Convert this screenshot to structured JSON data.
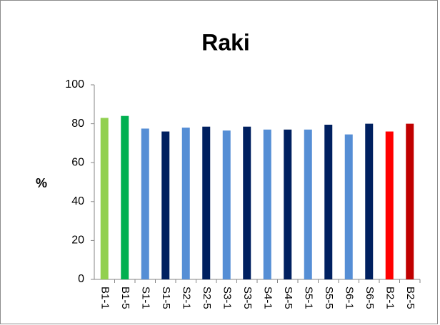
{
  "chart_data": {
    "type": "bar",
    "title": "Raki",
    "y_label": "%",
    "categories": [
      "B1-1",
      "B1-5",
      "S1-1",
      "S1-5",
      "S2-1",
      "S2-5",
      "S3-1",
      "S3-5",
      "S4-1",
      "S4-5",
      "S5-1",
      "S5-5",
      "S6-1",
      "S6-5",
      "B2-1",
      "B2-5"
    ],
    "values": [
      83,
      84,
      77.5,
      76,
      78,
      78.5,
      76.5,
      78.5,
      77,
      77,
      77,
      79.5,
      74.5,
      80,
      76,
      80
    ],
    "colors": [
      "#92d050",
      "#00b050",
      "#558ed5",
      "#002060",
      "#558ed5",
      "#002060",
      "#558ed5",
      "#002060",
      "#558ed5",
      "#002060",
      "#558ed5",
      "#002060",
      "#558ed5",
      "#002060",
      "#ff0000",
      "#c00000"
    ],
    "ylim": [
      0,
      100
    ],
    "yticks": [
      0,
      20,
      40,
      60,
      80,
      100
    ],
    "grid": false
  }
}
